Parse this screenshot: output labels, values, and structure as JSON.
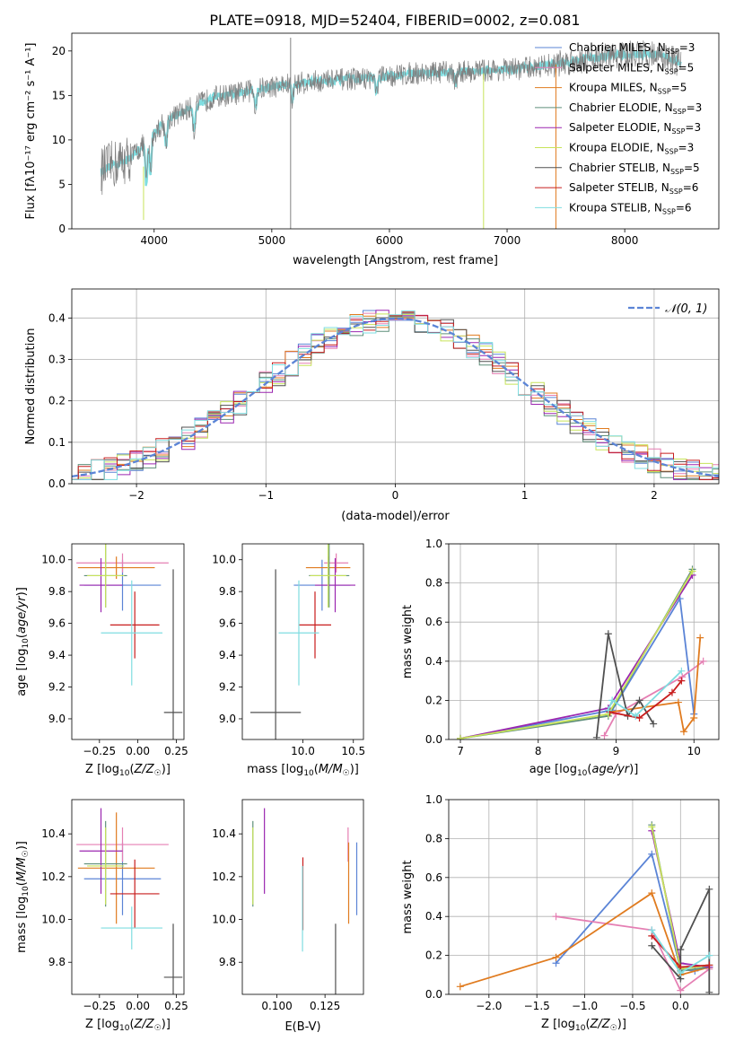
{
  "figure_title": "PLATE=0918, MJD=52404, FIBERID=0002, z=0.081",
  "models": [
    {
      "name": "Chabrier MILES",
      "nssp": "3",
      "color": "#5b84d6"
    },
    {
      "name": "Salpeter MILES",
      "nssp": "5",
      "color": "#e57fb3"
    },
    {
      "name": "Kroupa MILES",
      "nssp": "5",
      "color": "#e07b1f"
    },
    {
      "name": "Chabrier ELODIE",
      "nssp": "3",
      "color": "#5f8f7a"
    },
    {
      "name": "Salpeter ELODIE",
      "nssp": "3",
      "color": "#9b27b0"
    },
    {
      "name": "Kroupa ELODIE",
      "nssp": "3",
      "color": "#c7e35a"
    },
    {
      "name": "Chabrier STELIB",
      "nssp": "5",
      "color": "#505050"
    },
    {
      "name": "Salpeter STELIB",
      "nssp": "6",
      "color": "#c81d1d"
    },
    {
      "name": "Kroupa STELIB",
      "nssp": "6",
      "color": "#7fdde0"
    }
  ],
  "chart_data": [
    {
      "id": "spectrum",
      "type": "line",
      "xlabel_pre": "wavelength [Angstrom, rest frame]",
      "ylabel": "Flux [fλ10⁻¹⁷ erg cm⁻² s⁻¹ A⁻¹]",
      "xlim": [
        3300,
        8800
      ],
      "ylim": [
        0,
        22
      ],
      "xticks": [
        4000,
        5000,
        6000,
        7000,
        8000
      ],
      "yticks": [
        0,
        5,
        10,
        15,
        20
      ],
      "data_color": "#808080",
      "model_color": "#7fdde0",
      "continuum_x": [
        3550,
        3650,
        3800,
        3950,
        4100,
        4300,
        4500,
        4700,
        5000,
        5300,
        5600,
        5900,
        6200,
        6500,
        6800,
        7100,
        7400,
        7700,
        8000,
        8300,
        8500
      ],
      "continuum_y": [
        6.5,
        7.2,
        8.0,
        10.0,
        12.2,
        13.5,
        14.8,
        15.2,
        16.0,
        16.5,
        16.8,
        17.0,
        17.5,
        17.6,
        17.8,
        18.0,
        18.5,
        19.2,
        19.6,
        19.6,
        18.5
      ]
    },
    {
      "id": "residuals",
      "type": "line",
      "xlabel": "(data-model)/error",
      "ylabel": "Normed distribution",
      "xlim": [
        -2.5,
        2.5
      ],
      "ylim": [
        0,
        0.47
      ],
      "xticks": [
        -2,
        -1,
        0,
        1,
        2
      ],
      "yticks": [
        0.0,
        0.1,
        0.2,
        0.3,
        0.4
      ],
      "grid": true,
      "legend": "top-right",
      "normal_label": "𝒩(0, 1)",
      "normal_color": "#5b84d6"
    },
    {
      "id": "age-Z",
      "type": "scatter",
      "xlabel": "Z [log10(Z/Z☉)]",
      "ylabel": "age [log10(age/yr)]",
      "xlim": [
        -0.43,
        0.3
      ],
      "ylim": [
        8.87,
        10.1
      ],
      "xticks": [
        -0.25,
        0.0,
        0.25
      ],
      "yticks": [
        9.0,
        9.2,
        9.4,
        9.6,
        9.8,
        10.0
      ],
      "points": [
        {
          "model": 0,
          "x": -0.1,
          "xerr": 0.25,
          "y": 9.84,
          "yerr": 0.16
        },
        {
          "model": 1,
          "x": -0.1,
          "xerr": 0.3,
          "y": 9.98,
          "yerr": 0.06
        },
        {
          "model": 2,
          "x": -0.14,
          "xerr": 0.25,
          "y": 9.95,
          "yerr": 0.07
        },
        {
          "model": 3,
          "x": -0.21,
          "xerr": 0.14,
          "y": 9.9,
          "yerr": 0.2
        },
        {
          "model": 4,
          "x": -0.24,
          "xerr": 0.14,
          "y": 9.84,
          "yerr": 0.17
        },
        {
          "model": 5,
          "x": -0.21,
          "xerr": 0.12,
          "y": 9.9,
          "yerr": 0.2
        },
        {
          "model": 6,
          "x": 0.23,
          "xerr": 0.06,
          "y": 9.04,
          "yerr": 0.9
        },
        {
          "model": 7,
          "x": -0.02,
          "xerr": 0.16,
          "y": 9.59,
          "yerr": 0.21
        },
        {
          "model": 8,
          "x": -0.04,
          "xerr": 0.2,
          "y": 9.54,
          "yerr": 0.33
        }
      ]
    },
    {
      "id": "age-mass",
      "type": "scatter",
      "xlabel": "mass [log10(M/M☉)]",
      "ylabel": "",
      "xlim": [
        9.4,
        10.6
      ],
      "ylim": [
        8.87,
        10.1
      ],
      "xticks": [
        10.0,
        10.5
      ],
      "yticks": [
        9.0,
        9.2,
        9.4,
        9.6,
        9.8,
        10.0
      ],
      "points": [
        {
          "model": 0,
          "x": 10.19,
          "xerr": 0.28,
          "y": 9.84,
          "yerr": 0.16
        },
        {
          "model": 1,
          "x": 10.33,
          "xerr": 0.12,
          "y": 9.98,
          "yerr": 0.06
        },
        {
          "model": 2,
          "x": 10.25,
          "xerr": 0.22,
          "y": 9.95,
          "yerr": 0.07
        },
        {
          "model": 3,
          "x": 10.26,
          "xerr": 0.2,
          "y": 9.9,
          "yerr": 0.2
        },
        {
          "model": 4,
          "x": 10.32,
          "xerr": 0.2,
          "y": 9.84,
          "yerr": 0.17
        },
        {
          "model": 5,
          "x": 10.25,
          "xerr": 0.18,
          "y": 9.9,
          "yerr": 0.2
        },
        {
          "model": 6,
          "x": 9.73,
          "xerr": 0.25,
          "y": 9.04,
          "yerr": 0.9
        },
        {
          "model": 7,
          "x": 10.12,
          "xerr": 0.16,
          "y": 9.59,
          "yerr": 0.21
        },
        {
          "model": 8,
          "x": 9.96,
          "xerr": 0.2,
          "y": 9.54,
          "yerr": 0.33
        }
      ]
    },
    {
      "id": "weight-age",
      "type": "line",
      "xlabel": "age [log10(age/yr)]",
      "ylabel": "mass weight",
      "xlim": [
        6.85,
        10.32
      ],
      "ylim": [
        0,
        1.0
      ],
      "xticks": [
        7,
        8,
        9,
        10
      ],
      "yticks": [
        0.0,
        0.2,
        0.4,
        0.6,
        0.8,
        1.0
      ],
      "grid": true,
      "series": [
        {
          "model": 0,
          "x": [
            7.0,
            8.95,
            9.82,
            10.0
          ],
          "y": [
            0.005,
            0.15,
            0.72,
            0.13
          ]
        },
        {
          "model": 1,
          "x": [
            8.85,
            9.0,
            9.85,
            10.12
          ],
          "y": [
            0.02,
            0.13,
            0.32,
            0.4
          ]
        },
        {
          "model": 2,
          "x": [
            8.92,
            9.8,
            9.87,
            10.0,
            10.08
          ],
          "y": [
            0.14,
            0.19,
            0.04,
            0.11,
            0.52
          ]
        },
        {
          "model": 3,
          "x": [
            7.0,
            8.9,
            9.98
          ],
          "y": [
            0.005,
            0.12,
            0.87
          ]
        },
        {
          "model": 4,
          "x": [
            7.0,
            8.9,
            9.98
          ],
          "y": [
            0.005,
            0.16,
            0.84
          ]
        },
        {
          "model": 5,
          "x": [
            7.0,
            8.9,
            9.98
          ],
          "y": [
            0.005,
            0.13,
            0.86
          ]
        },
        {
          "model": 6,
          "x": [
            8.75,
            8.9,
            9.15,
            9.3,
            9.48
          ],
          "y": [
            0.01,
            0.54,
            0.12,
            0.2,
            0.08
          ]
        },
        {
          "model": 7,
          "x": [
            8.92,
            9.3,
            9.72,
            9.84
          ],
          "y": [
            0.14,
            0.11,
            0.24,
            0.3
          ]
        },
        {
          "model": 8,
          "x": [
            8.9,
            8.95,
            9.25,
            9.84
          ],
          "y": [
            0.15,
            0.2,
            0.12,
            0.35
          ]
        }
      ]
    },
    {
      "id": "mass-Z",
      "type": "scatter",
      "xlabel": "Z [log10(Z/Z☉)]",
      "ylabel": "mass [log10(M/M☉)]",
      "xlim": [
        -0.43,
        0.3
      ],
      "ylim": [
        9.65,
        10.56
      ],
      "xticks": [
        -0.25,
        0.0,
        0.25
      ],
      "yticks": [
        9.8,
        10.0,
        10.2,
        10.4
      ],
      "points": [
        {
          "model": 0,
          "x": -0.1,
          "xerr": 0.25,
          "y": 10.19,
          "yerr": 0.17
        },
        {
          "model": 1,
          "x": -0.1,
          "xerr": 0.3,
          "y": 10.35,
          "yerr": 0.08
        },
        {
          "model": 2,
          "x": -0.14,
          "xerr": 0.25,
          "y": 10.24,
          "yerr": 0.26
        },
        {
          "model": 3,
          "x": -0.21,
          "xerr": 0.14,
          "y": 10.26,
          "yerr": 0.2
        },
        {
          "model": 4,
          "x": -0.24,
          "xerr": 0.14,
          "y": 10.32,
          "yerr": 0.2
        },
        {
          "model": 5,
          "x": -0.21,
          "xerr": 0.12,
          "y": 10.25,
          "yerr": 0.18
        },
        {
          "model": 6,
          "x": 0.23,
          "xerr": 0.06,
          "y": 9.73,
          "yerr": 0.25
        },
        {
          "model": 7,
          "x": -0.02,
          "xerr": 0.16,
          "y": 10.12,
          "yerr": 0.16
        },
        {
          "model": 8,
          "x": -0.04,
          "xerr": 0.2,
          "y": 9.96,
          "yerr": 0.1
        }
      ]
    },
    {
      "id": "mass-EBV",
      "type": "scatter",
      "xlabel": "E(B-V)",
      "ylabel": "",
      "xlim": [
        0.082,
        0.145
      ],
      "ylim": [
        9.65,
        10.56
      ],
      "xticks": [
        0.1,
        0.125
      ],
      "yticks": [
        9.8,
        10.0,
        10.2,
        10.4
      ],
      "points": [
        {
          "model": 0,
          "x": 0.1415,
          "y": 10.19,
          "yerr": 0.17
        },
        {
          "model": 1,
          "x": 0.137,
          "y": 10.35,
          "yerr": 0.08
        },
        {
          "model": 2,
          "x": 0.1373,
          "y": 10.17,
          "yerr": 0.19
        },
        {
          "model": 3,
          "x": 0.0875,
          "y": 10.26,
          "yerr": 0.2
        },
        {
          "model": 4,
          "x": 0.0935,
          "y": 10.32,
          "yerr": 0.2
        },
        {
          "model": 5,
          "x": 0.0875,
          "y": 10.25,
          "yerr": 0.18
        },
        {
          "model": 6,
          "x": 0.1305,
          "y": 9.73,
          "yerr": 0.25
        },
        {
          "model": 7,
          "x": 0.1135,
          "y": 10.12,
          "yerr": 0.17
        },
        {
          "model": 8,
          "x": 0.1133,
          "y": 10.05,
          "yerr": 0.2
        }
      ]
    },
    {
      "id": "weight-Z",
      "type": "line",
      "xlabel": "Z [log10(Z/Z☉)]",
      "ylabel": "mass weight",
      "xlim": [
        -2.42,
        0.4
      ],
      "ylim": [
        0,
        1.0
      ],
      "xticks": [
        -2.0,
        -1.5,
        -1.0,
        -0.5,
        0.0
      ],
      "yticks": [
        0.0,
        0.2,
        0.4,
        0.6,
        0.8,
        1.0
      ],
      "grid": true,
      "series": [
        {
          "model": 0,
          "x": [
            -1.3,
            -0.3,
            0.0,
            0.15,
            0.3
          ],
          "y": [
            0.16,
            0.72,
            0.13,
            0.12,
            0.15
          ]
        },
        {
          "model": 1,
          "x": [
            -1.3,
            -0.3,
            0.0,
            0.3
          ],
          "y": [
            0.4,
            0.33,
            0.02,
            0.13
          ]
        },
        {
          "model": 2,
          "x": [
            -2.3,
            -1.3,
            -0.3,
            0.0,
            0.3
          ],
          "y": [
            0.04,
            0.19,
            0.52,
            0.1,
            0.14
          ]
        },
        {
          "model": 3,
          "x": [
            -0.3,
            0.0,
            0.3
          ],
          "y": [
            0.87,
            0.12,
            0.14
          ]
        },
        {
          "model": 4,
          "x": [
            -0.3,
            0.0,
            0.3
          ],
          "y": [
            0.84,
            0.16,
            0.14
          ]
        },
        {
          "model": 5,
          "x": [
            -0.3,
            0.0,
            0.3
          ],
          "y": [
            0.86,
            0.13,
            0.15
          ]
        },
        {
          "model": 6,
          "x": [
            -0.3,
            0.0,
            0.0,
            0.3,
            0.3
          ],
          "y": [
            0.25,
            0.08,
            0.23,
            0.54,
            0.01
          ]
        },
        {
          "model": 7,
          "x": [
            -0.3,
            0.0,
            0.3
          ],
          "y": [
            0.3,
            0.14,
            0.15
          ]
        },
        {
          "model": 8,
          "x": [
            -0.3,
            0.0,
            0.3
          ],
          "y": [
            0.33,
            0.11,
            0.2
          ]
        }
      ]
    }
  ]
}
